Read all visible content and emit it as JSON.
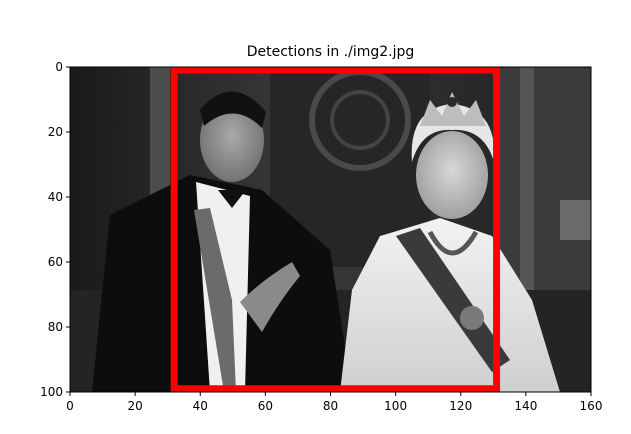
{
  "chart_data": {
    "type": "image",
    "title": "Detections in ./img2.jpg",
    "xlim": [
      0,
      160
    ],
    "ylim": [
      100,
      0
    ],
    "x_ticks": [
      "0",
      "20",
      "40",
      "60",
      "80",
      "100",
      "120",
      "140",
      "160"
    ],
    "y_ticks": [
      "0",
      "20",
      "40",
      "60",
      "80",
      "100"
    ],
    "image_content": "grayscale photograph of a man in a tuxedo and a woman wearing a tiara and sash",
    "detections": [
      {
        "x0": 32,
        "y0": 0,
        "x1": 131,
        "y1": 99,
        "color": "#ff0000"
      }
    ]
  }
}
